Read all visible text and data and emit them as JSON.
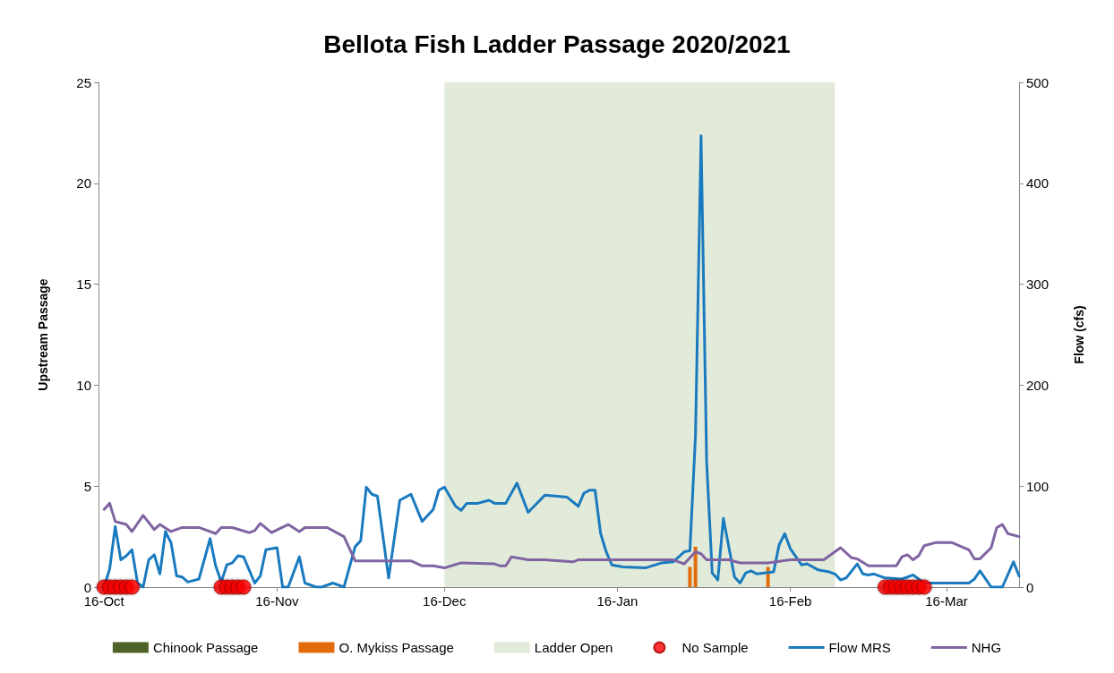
{
  "chart_data": {
    "type": "line",
    "title": "Bellota Fish Ladder Passage 2020/2021",
    "ylabel": "Upstream Passage",
    "y2label": "Flow (cfs)",
    "xlim": [
      "2020-10-15",
      "2021-03-29"
    ],
    "xticks": [
      {
        "value": "2020-10-16",
        "label": "16-Oct"
      },
      {
        "value": "2020-11-16",
        "label": "16-Nov"
      },
      {
        "value": "2020-12-16",
        "label": "16-Dec"
      },
      {
        "value": "2021-01-16",
        "label": "16-Jan"
      },
      {
        "value": "2021-02-16",
        "label": "16-Feb"
      },
      {
        "value": "2021-03-16",
        "label": "16-Mar"
      }
    ],
    "ylim": [
      0,
      25
    ],
    "yticks": [
      0,
      5,
      10,
      15,
      20,
      25
    ],
    "y2lim": [
      0,
      500
    ],
    "y2ticks": [
      0,
      100,
      200,
      300,
      400,
      500
    ],
    "grid": false,
    "legend": "bottom",
    "bands": [
      {
        "axis": "x",
        "from": "2020-12-16",
        "to": "2021-02-24",
        "label": "Ladder Open",
        "color": "#e2ebd9"
      }
    ],
    "series": [
      {
        "name": "Chinook Passage",
        "type": "bar",
        "color": "#4f6228"
      },
      {
        "name": "O. Mykiss Passage",
        "type": "bar",
        "color": "#e36c0a",
        "x": [
          "2021-01-29",
          "2021-01-30",
          "2021-02-12"
        ],
        "values": [
          1,
          2,
          1
        ]
      },
      {
        "name": "No Sample",
        "type": "scatter",
        "marker": "circle",
        "color": "#ff0000",
        "x": [
          "2020-10-16",
          "2020-10-17",
          "2020-10-18",
          "2020-10-19",
          "2020-10-20",
          "2020-10-21",
          "2020-11-06",
          "2020-11-07",
          "2020-11-08",
          "2020-11-09",
          "2020-11-10",
          "2021-03-05",
          "2021-03-06",
          "2021-03-07",
          "2021-03-08",
          "2021-03-09",
          "2021-03-10",
          "2021-03-11",
          "2021-03-12"
        ],
        "values": [
          0,
          0,
          0,
          0,
          0,
          0,
          0,
          0,
          0,
          0,
          0,
          0,
          0,
          0,
          0,
          0,
          0,
          0,
          0
        ]
      },
      {
        "name": "Flow MRS",
        "axis": "y2",
        "color": "#1a7abf",
        "x": [
          "2020-10-16",
          "2020-10-17",
          "2020-10-18",
          "2020-10-19",
          "2020-10-20",
          "2020-10-21",
          "2020-10-22",
          "2020-10-23",
          "2020-10-24",
          "2020-10-25",
          "2020-10-26",
          "2020-10-27",
          "2020-10-28",
          "2020-10-29",
          "2020-10-30",
          "2020-10-31",
          "2020-11-02",
          "2020-11-04",
          "2020-11-05",
          "2020-11-06",
          "2020-11-07",
          "2020-11-08",
          "2020-11-09",
          "2020-11-10",
          "2020-11-12",
          "2020-11-13",
          "2020-11-14",
          "2020-11-16",
          "2020-11-17",
          "2020-11-18",
          "2020-11-20",
          "2020-11-21",
          "2020-11-23",
          "2020-11-24",
          "2020-11-26",
          "2020-11-28",
          "2020-11-30",
          "2020-12-01",
          "2020-12-02",
          "2020-12-03",
          "2020-12-04",
          "2020-12-06",
          "2020-12-08",
          "2020-12-10",
          "2020-12-12",
          "2020-12-14",
          "2020-12-15",
          "2020-12-16",
          "2020-12-18",
          "2020-12-19",
          "2020-12-20",
          "2020-12-22",
          "2020-12-24",
          "2020-12-25",
          "2020-12-27",
          "2020-12-29",
          "2020-12-31",
          "2021-01-03",
          "2021-01-07",
          "2021-01-09",
          "2021-01-10",
          "2021-01-11",
          "2021-01-12",
          "2021-01-13",
          "2021-01-14",
          "2021-01-15",
          "2021-01-17",
          "2021-01-21",
          "2021-01-24",
          "2021-01-26",
          "2021-01-28",
          "2021-01-29",
          "2021-01-30",
          "2021-01-31",
          "2021-02-01",
          "2021-02-02",
          "2021-02-03",
          "2021-02-04",
          "2021-02-06",
          "2021-02-07",
          "2021-02-08",
          "2021-02-09",
          "2021-02-10",
          "2021-02-13",
          "2021-02-14",
          "2021-02-15",
          "2021-02-16",
          "2021-02-18",
          "2021-02-19",
          "2021-02-21",
          "2021-02-23",
          "2021-02-24",
          "2021-02-25",
          "2021-02-26",
          "2021-02-28",
          "2021-03-01",
          "2021-03-02",
          "2021-03-03",
          "2021-03-05",
          "2021-03-08",
          "2021-03-10",
          "2021-03-12",
          "2021-03-14",
          "2021-03-20",
          "2021-03-21",
          "2021-03-22",
          "2021-03-24",
          "2021-03-26",
          "2021-03-28",
          "2021-03-29"
        ],
        "values": [
          0,
          18,
          60,
          27,
          31,
          37,
          4,
          0,
          27,
          32,
          13,
          55,
          44,
          11,
          10,
          5,
          8,
          48,
          21,
          5,
          22,
          24,
          31,
          30,
          4,
          11,
          37,
          39,
          0,
          0,
          30,
          4,
          0,
          0,
          4,
          0,
          40,
          46,
          99,
          92,
          90,
          9,
          86,
          92,
          65,
          77,
          96,
          99,
          80,
          76,
          83,
          83,
          86,
          83,
          83,
          103,
          74,
          91,
          89,
          80,
          93,
          96,
          96,
          53,
          35,
          22,
          20,
          19,
          24,
          25,
          35,
          36,
          150,
          447,
          124,
          14,
          7,
          68,
          10,
          4,
          14,
          16,
          13,
          15,
          42,
          53,
          38,
          22,
          23,
          17,
          15,
          13,
          7,
          9,
          23,
          13,
          12,
          13,
          9,
          8,
          12,
          4,
          4,
          4,
          8,
          16,
          0,
          0,
          25,
          11
        ]
      },
      {
        "name": "NHG",
        "axis": "y2",
        "color": "#8064a2",
        "x": [
          "2020-10-16",
          "2020-10-17",
          "2020-10-18",
          "2020-10-20",
          "2020-10-21",
          "2020-10-23",
          "2020-10-25",
          "2020-10-26",
          "2020-10-28",
          "2020-10-30",
          "2020-11-02",
          "2020-11-05",
          "2020-11-06",
          "2020-11-08",
          "2020-11-11",
          "2020-11-12",
          "2020-11-13",
          "2020-11-15",
          "2020-11-18",
          "2020-11-20",
          "2020-11-21",
          "2020-11-25",
          "2020-11-28",
          "2020-11-30",
          "2020-12-10",
          "2020-12-12",
          "2020-12-14",
          "2020-12-16",
          "2020-12-19",
          "2020-12-25",
          "2020-12-26",
          "2020-12-27",
          "2020-12-28",
          "2020-12-31",
          "2021-01-03",
          "2021-01-08",
          "2021-01-09",
          "2021-01-14",
          "2021-01-19",
          "2021-01-26",
          "2021-01-28",
          "2021-01-30",
          "2021-01-31",
          "2021-02-01",
          "2021-02-05",
          "2021-02-07",
          "2021-02-12",
          "2021-02-16",
          "2021-02-22",
          "2021-02-25",
          "2021-02-27",
          "2021-02-28",
          "2021-03-02",
          "2021-03-07",
          "2021-03-08",
          "2021-03-09",
          "2021-03-10",
          "2021-03-11",
          "2021-03-12",
          "2021-03-14",
          "2021-03-17",
          "2021-03-20",
          "2021-03-21",
          "2021-03-22",
          "2021-03-24",
          "2021-03-25",
          "2021-03-26",
          "2021-03-27",
          "2021-03-29"
        ],
        "values": [
          77,
          83,
          65,
          62,
          55,
          71,
          57,
          62,
          55,
          59,
          59,
          53,
          59,
          59,
          54,
          56,
          63,
          54,
          62,
          55,
          59,
          59,
          50,
          26,
          26,
          21,
          21,
          19,
          24,
          23,
          21,
          21,
          30,
          27,
          27,
          25,
          27,
          27,
          27,
          27,
          23,
          35,
          33,
          27,
          27,
          24,
          24,
          27,
          27,
          39,
          29,
          28,
          21,
          21,
          30,
          32,
          27,
          31,
          41,
          44,
          44,
          37,
          28,
          28,
          39,
          59,
          62,
          53,
          50
        ]
      }
    ]
  }
}
